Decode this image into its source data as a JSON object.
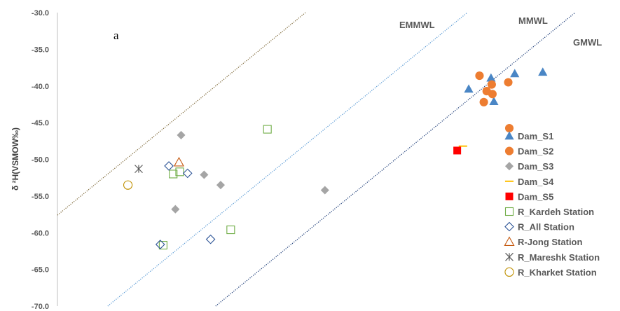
{
  "chart_data": {
    "type": "scatter",
    "panel_label": "a",
    "ylabel": "δ ²H(VSMOW‰)",
    "xlabel": "",
    "ylim": [
      -70.0,
      -30.0
    ],
    "xlim": [
      -12.2,
      -4.6
    ],
    "x_ticks_visible": false,
    "grid": false,
    "legend_position": "right",
    "yticks": [
      "-30.0",
      "-35.0",
      "-40.0",
      "-45.0",
      "-50.0",
      "-55.0",
      "-60.0",
      "-65.0",
      "-70.0"
    ],
    "lines": [
      {
        "name": "EMMWL",
        "slope": 8,
        "intercept": 40.0,
        "color": "#7f6a3a"
      },
      {
        "name": "MMWL",
        "slope": 8,
        "intercept": 22.0,
        "color": "#5b9bd5"
      },
      {
        "name": "GMWL",
        "slope": 8,
        "intercept": 10.0,
        "color": "#1f3f7a"
      }
    ],
    "series": [
      {
        "name": "Dam_S1",
        "marker": "triangle",
        "color": "#4a86c5",
        "filled": true,
        "points": [
          [
            -6.48,
            -40.4
          ],
          [
            -6.17,
            -38.9
          ],
          [
            -6.13,
            -42.1
          ],
          [
            -5.84,
            -38.3
          ],
          [
            -5.45,
            -38.1
          ]
        ]
      },
      {
        "name": "Dam_S2",
        "marker": "circle",
        "color": "#ed7d31",
        "filled": true,
        "points": [
          [
            -6.33,
            -38.6
          ],
          [
            -6.23,
            -40.7
          ],
          [
            -6.16,
            -39.8
          ],
          [
            -6.15,
            -41.1
          ],
          [
            -6.27,
            -42.2
          ],
          [
            -5.93,
            -39.5
          ]
        ]
      },
      {
        "name": "Dam_S3",
        "marker": "diamond",
        "color": "#a5a5a5",
        "filled": true,
        "points": [
          [
            -10.48,
            -46.7
          ],
          [
            -10.16,
            -52.1
          ],
          [
            -9.93,
            -53.5
          ],
          [
            -10.56,
            -56.8
          ],
          [
            -8.48,
            -54.2
          ]
        ]
      },
      {
        "name": "Dam_S4",
        "marker": "dash",
        "color": "#ffc000",
        "filled": true,
        "points": [
          [
            -6.56,
            -48.2
          ]
        ]
      },
      {
        "name": "Dam_S5",
        "marker": "square",
        "color": "#ff0000",
        "filled": true,
        "points": [
          [
            -6.64,
            -48.8
          ]
        ]
      },
      {
        "name": "R_Kardeh Station",
        "marker": "square",
        "color": "#70ad47",
        "filled": false,
        "points": [
          [
            -9.28,
            -45.9
          ],
          [
            -10.59,
            -52.0
          ],
          [
            -10.5,
            -51.7
          ],
          [
            -9.79,
            -59.6
          ],
          [
            -10.73,
            -61.7
          ]
        ]
      },
      {
        "name": "R_All Station",
        "marker": "diamond",
        "color": "#2e5597",
        "filled": false,
        "points": [
          [
            -10.65,
            -50.9
          ],
          [
            -10.39,
            -51.9
          ],
          [
            -10.77,
            -61.6
          ],
          [
            -10.07,
            -60.9
          ]
        ]
      },
      {
        "name": "R-Jong Station",
        "marker": "triangle",
        "color": "#c55a11",
        "filled": false,
        "points": [
          [
            -10.51,
            -50.4
          ]
        ]
      },
      {
        "name": "R_Mareshk Station",
        "marker": "xstar",
        "color": "#595959",
        "filled": false,
        "points": [
          [
            -11.07,
            -51.3
          ]
        ]
      },
      {
        "name": "R_Kharket Station",
        "marker": "circle",
        "color": "#bf9000",
        "filled": false,
        "points": [
          [
            -11.22,
            -53.5
          ]
        ]
      }
    ]
  }
}
